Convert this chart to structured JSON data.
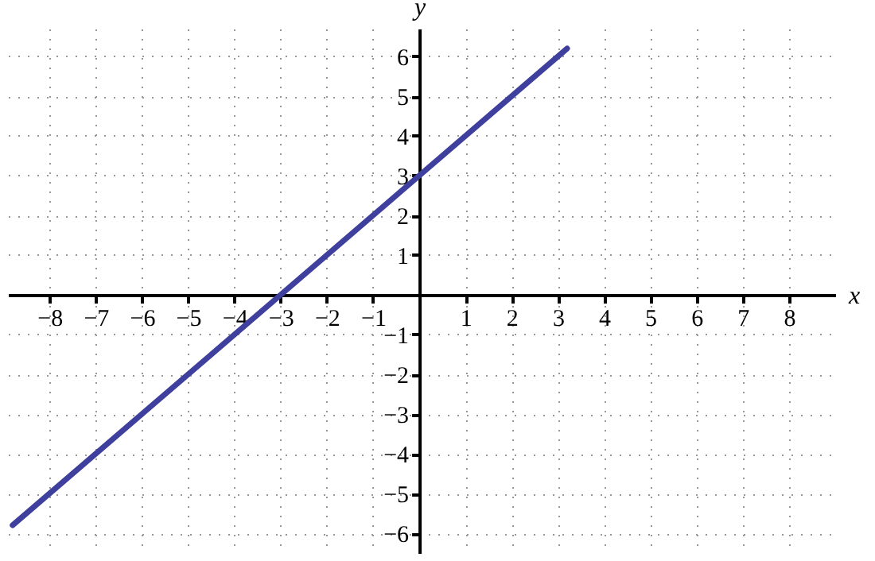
{
  "chart_data": {
    "type": "line",
    "xlabel": "x",
    "ylabel": "y",
    "x": [
      -8.8,
      3.2
    ],
    "series": [
      {
        "color": "#3f3f9e",
        "values": [
          -5.8,
          6.2
        ]
      }
    ],
    "xlim": [
      -8.9,
      9.0
    ],
    "ylim": [
      -6.5,
      6.7
    ],
    "xticks": [
      {
        "value": -8,
        "label": "−8"
      },
      {
        "value": -7,
        "label": "−7"
      },
      {
        "value": -6,
        "label": "−6"
      },
      {
        "value": -5,
        "label": "−5"
      },
      {
        "value": -4,
        "label": "−4"
      },
      {
        "value": -3,
        "label": "−3"
      },
      {
        "value": -2,
        "label": "−2"
      },
      {
        "value": -1,
        "label": "−1"
      },
      1,
      2,
      3,
      4,
      5,
      6,
      7,
      8
    ],
    "yticks": [
      {
        "value": -6,
        "label": "−6"
      },
      {
        "value": -5,
        "label": "−5"
      },
      {
        "value": -4,
        "label": "−4"
      },
      {
        "value": -3,
        "label": "−3"
      },
      {
        "value": -2,
        "label": "−2"
      },
      {
        "value": -1,
        "label": "−1"
      },
      1,
      2,
      3,
      4,
      5,
      6
    ],
    "grid": true,
    "marker": "none",
    "line_style": "solid"
  }
}
